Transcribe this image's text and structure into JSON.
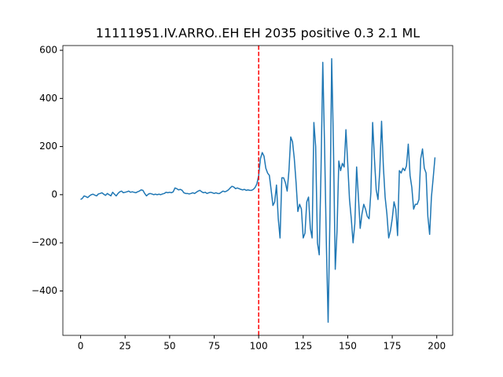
{
  "chart_data": {
    "type": "line",
    "title": "11111951.IV.ARRO..EH EH 2035 positive 0.3 2.1 ML",
    "x": [
      0,
      1,
      2,
      3,
      4,
      5,
      6,
      7,
      8,
      9,
      10,
      11,
      12,
      13,
      14,
      15,
      16,
      17,
      18,
      19,
      20,
      21,
      22,
      23,
      24,
      25,
      26,
      27,
      28,
      29,
      30,
      31,
      32,
      33,
      34,
      35,
      36,
      37,
      38,
      39,
      40,
      41,
      42,
      43,
      44,
      45,
      46,
      47,
      48,
      49,
      50,
      51,
      52,
      53,
      54,
      55,
      56,
      57,
      58,
      59,
      60,
      61,
      62,
      63,
      64,
      65,
      66,
      67,
      68,
      69,
      70,
      71,
      72,
      73,
      74,
      75,
      76,
      77,
      78,
      79,
      80,
      81,
      82,
      83,
      84,
      85,
      86,
      87,
      88,
      89,
      90,
      91,
      92,
      93,
      94,
      95,
      96,
      97,
      98,
      99,
      100,
      101,
      102,
      103,
      104,
      105,
      106,
      107,
      108,
      109,
      110,
      111,
      112,
      113,
      114,
      115,
      116,
      117,
      118,
      119,
      120,
      121,
      122,
      123,
      124,
      125,
      126,
      127,
      128,
      129,
      130,
      131,
      132,
      133,
      134,
      135,
      136,
      137,
      138,
      139,
      140,
      141,
      142,
      143,
      144,
      145,
      146,
      147,
      148,
      149,
      150,
      151,
      152,
      153,
      154,
      155,
      156,
      157,
      158,
      159,
      160,
      161,
      162,
      163,
      164,
      165,
      166,
      167,
      168,
      169,
      170,
      171,
      172,
      173,
      174,
      175,
      176,
      177,
      178,
      179,
      180,
      181,
      182,
      183,
      184,
      185,
      186,
      187,
      188,
      189,
      190,
      191,
      192,
      193,
      194,
      195,
      196,
      197,
      198,
      199
    ],
    "series": [
      {
        "color": "#1f77b4",
        "values": [
          -20,
          -15,
          -5,
          -8,
          -12,
          -5,
          0,
          2,
          -2,
          -5,
          3,
          5,
          8,
          2,
          -3,
          5,
          0,
          -5,
          10,
          2,
          -5,
          5,
          12,
          15,
          8,
          10,
          12,
          15,
          10,
          12,
          10,
          8,
          12,
          15,
          20,
          18,
          5,
          -5,
          2,
          5,
          3,
          0,
          2,
          0,
          2,
          0,
          3,
          5,
          10,
          8,
          10,
          8,
          12,
          28,
          25,
          20,
          22,
          18,
          8,
          5,
          5,
          3,
          5,
          8,
          5,
          10,
          15,
          18,
          12,
          8,
          10,
          5,
          8,
          10,
          8,
          5,
          8,
          5,
          5,
          10,
          15,
          12,
          15,
          20,
          28,
          35,
          32,
          25,
          28,
          25,
          22,
          20,
          22,
          18,
          20,
          18,
          18,
          22,
          30,
          45,
          80,
          150,
          175,
          160,
          110,
          90,
          80,
          20,
          -45,
          -30,
          40,
          -100,
          -180,
          70,
          70,
          50,
          15,
          100,
          240,
          220,
          150,
          50,
          -70,
          -40,
          -60,
          -180,
          -160,
          -30,
          -10,
          -140,
          -180,
          300,
          200,
          -200,
          -250,
          100,
          550,
          200,
          -200,
          -530,
          -100,
          565,
          200,
          -310,
          -150,
          140,
          100,
          130,
          115,
          270,
          130,
          -20,
          -100,
          -200,
          -120,
          115,
          -10,
          -140,
          -80,
          -40,
          -60,
          -90,
          -100,
          10,
          300,
          150,
          20,
          -20,
          100,
          305,
          120,
          -10,
          -80,
          -180,
          -150,
          -100,
          -30,
          -60,
          -170,
          100,
          90,
          110,
          100,
          120,
          210,
          80,
          30,
          -60,
          -40,
          -40,
          -20,
          150,
          190,
          110,
          90,
          -90,
          -165,
          -10,
          70,
          155
        ]
      }
    ],
    "xlim": [
      -9.95,
      208.95
    ],
    "ylim": [
      -584.75,
      619.75
    ],
    "xticks": [
      0,
      25,
      50,
      75,
      100,
      125,
      150,
      175,
      200
    ],
    "yticks": [
      {
        "value": -400,
        "label": "−400"
      },
      {
        "value": -200,
        "label": "−200"
      },
      0,
      200,
      400,
      600
    ],
    "vline": {
      "x": 100,
      "color": "#ff0000",
      "style": "dashed"
    }
  }
}
